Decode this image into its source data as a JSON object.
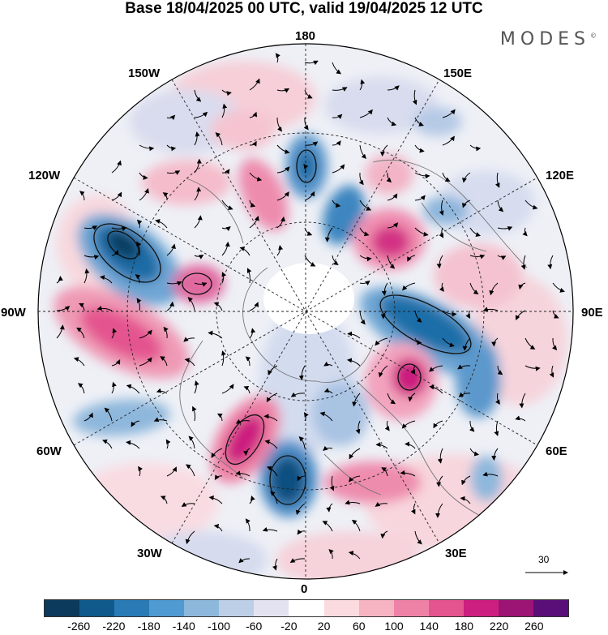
{
  "header": {
    "title": "Base 18/04/2025 00 UTC, valid 19/04/2025 12 UTC",
    "brand": "MODES",
    "brand_mark": "©"
  },
  "map": {
    "projection": "north-polar-stereographic",
    "longitude_labels": [
      "180",
      "150E",
      "120E",
      "90E",
      "60E",
      "30E",
      "0",
      "30W",
      "60W",
      "90W",
      "120W",
      "150W"
    ],
    "vector_scale": {
      "label": "30"
    }
  },
  "colorbar": {
    "colors": [
      "#0b3a5c",
      "#0f5a8a",
      "#2a7ab5",
      "#4f9ad0",
      "#8db8dc",
      "#bccfe6",
      "#e3e2f0",
      "#ffffff",
      "#fbdbe0",
      "#f6b3c2",
      "#ee82a6",
      "#e4548f",
      "#cc1f7f",
      "#9c1474",
      "#5a0f78"
    ],
    "tick_labels": [
      "-260",
      "-220",
      "-180",
      "-140",
      "-100",
      "-60",
      "-20",
      "20",
      "60",
      "100",
      "140",
      "180",
      "220",
      "260"
    ]
  }
}
